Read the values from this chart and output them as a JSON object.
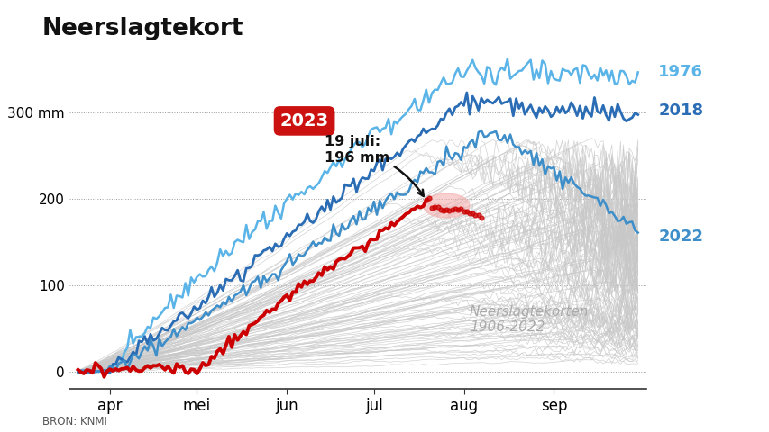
{
  "title": "Neerslagtekort",
  "source": "BRON: KNMI",
  "xlabel_ticks": [
    "apr",
    "mei",
    "jun",
    "jul",
    "aug",
    "sep"
  ],
  "ylabel_ticks": [
    0,
    100,
    200,
    300
  ],
  "ylim": [
    -20,
    370
  ],
  "annotation_label": "19 juli:\n196 mm",
  "annotation_year": "2023",
  "year_labels": [
    "1976",
    "2018",
    "2022"
  ],
  "year_label_colors": [
    "#5ab4e8",
    "#2a6db5",
    "#3d8ec9"
  ],
  "background_color": "#ffffff",
  "grid_color": "#999999",
  "historical_color": "#c8c8c8",
  "line_color_2023": "#cc0000",
  "line_color_1976": "#5ab4e8",
  "line_color_2018": "#2a6db5",
  "line_color_2022": "#3d8ec9",
  "badge_color": "#cc1111",
  "start_day": 80,
  "end_day": 274,
  "apr1": 91,
  "mei1": 121,
  "jun1": 152,
  "jul1": 182,
  "aug1": 213,
  "sep1": 244,
  "jul19": 200
}
